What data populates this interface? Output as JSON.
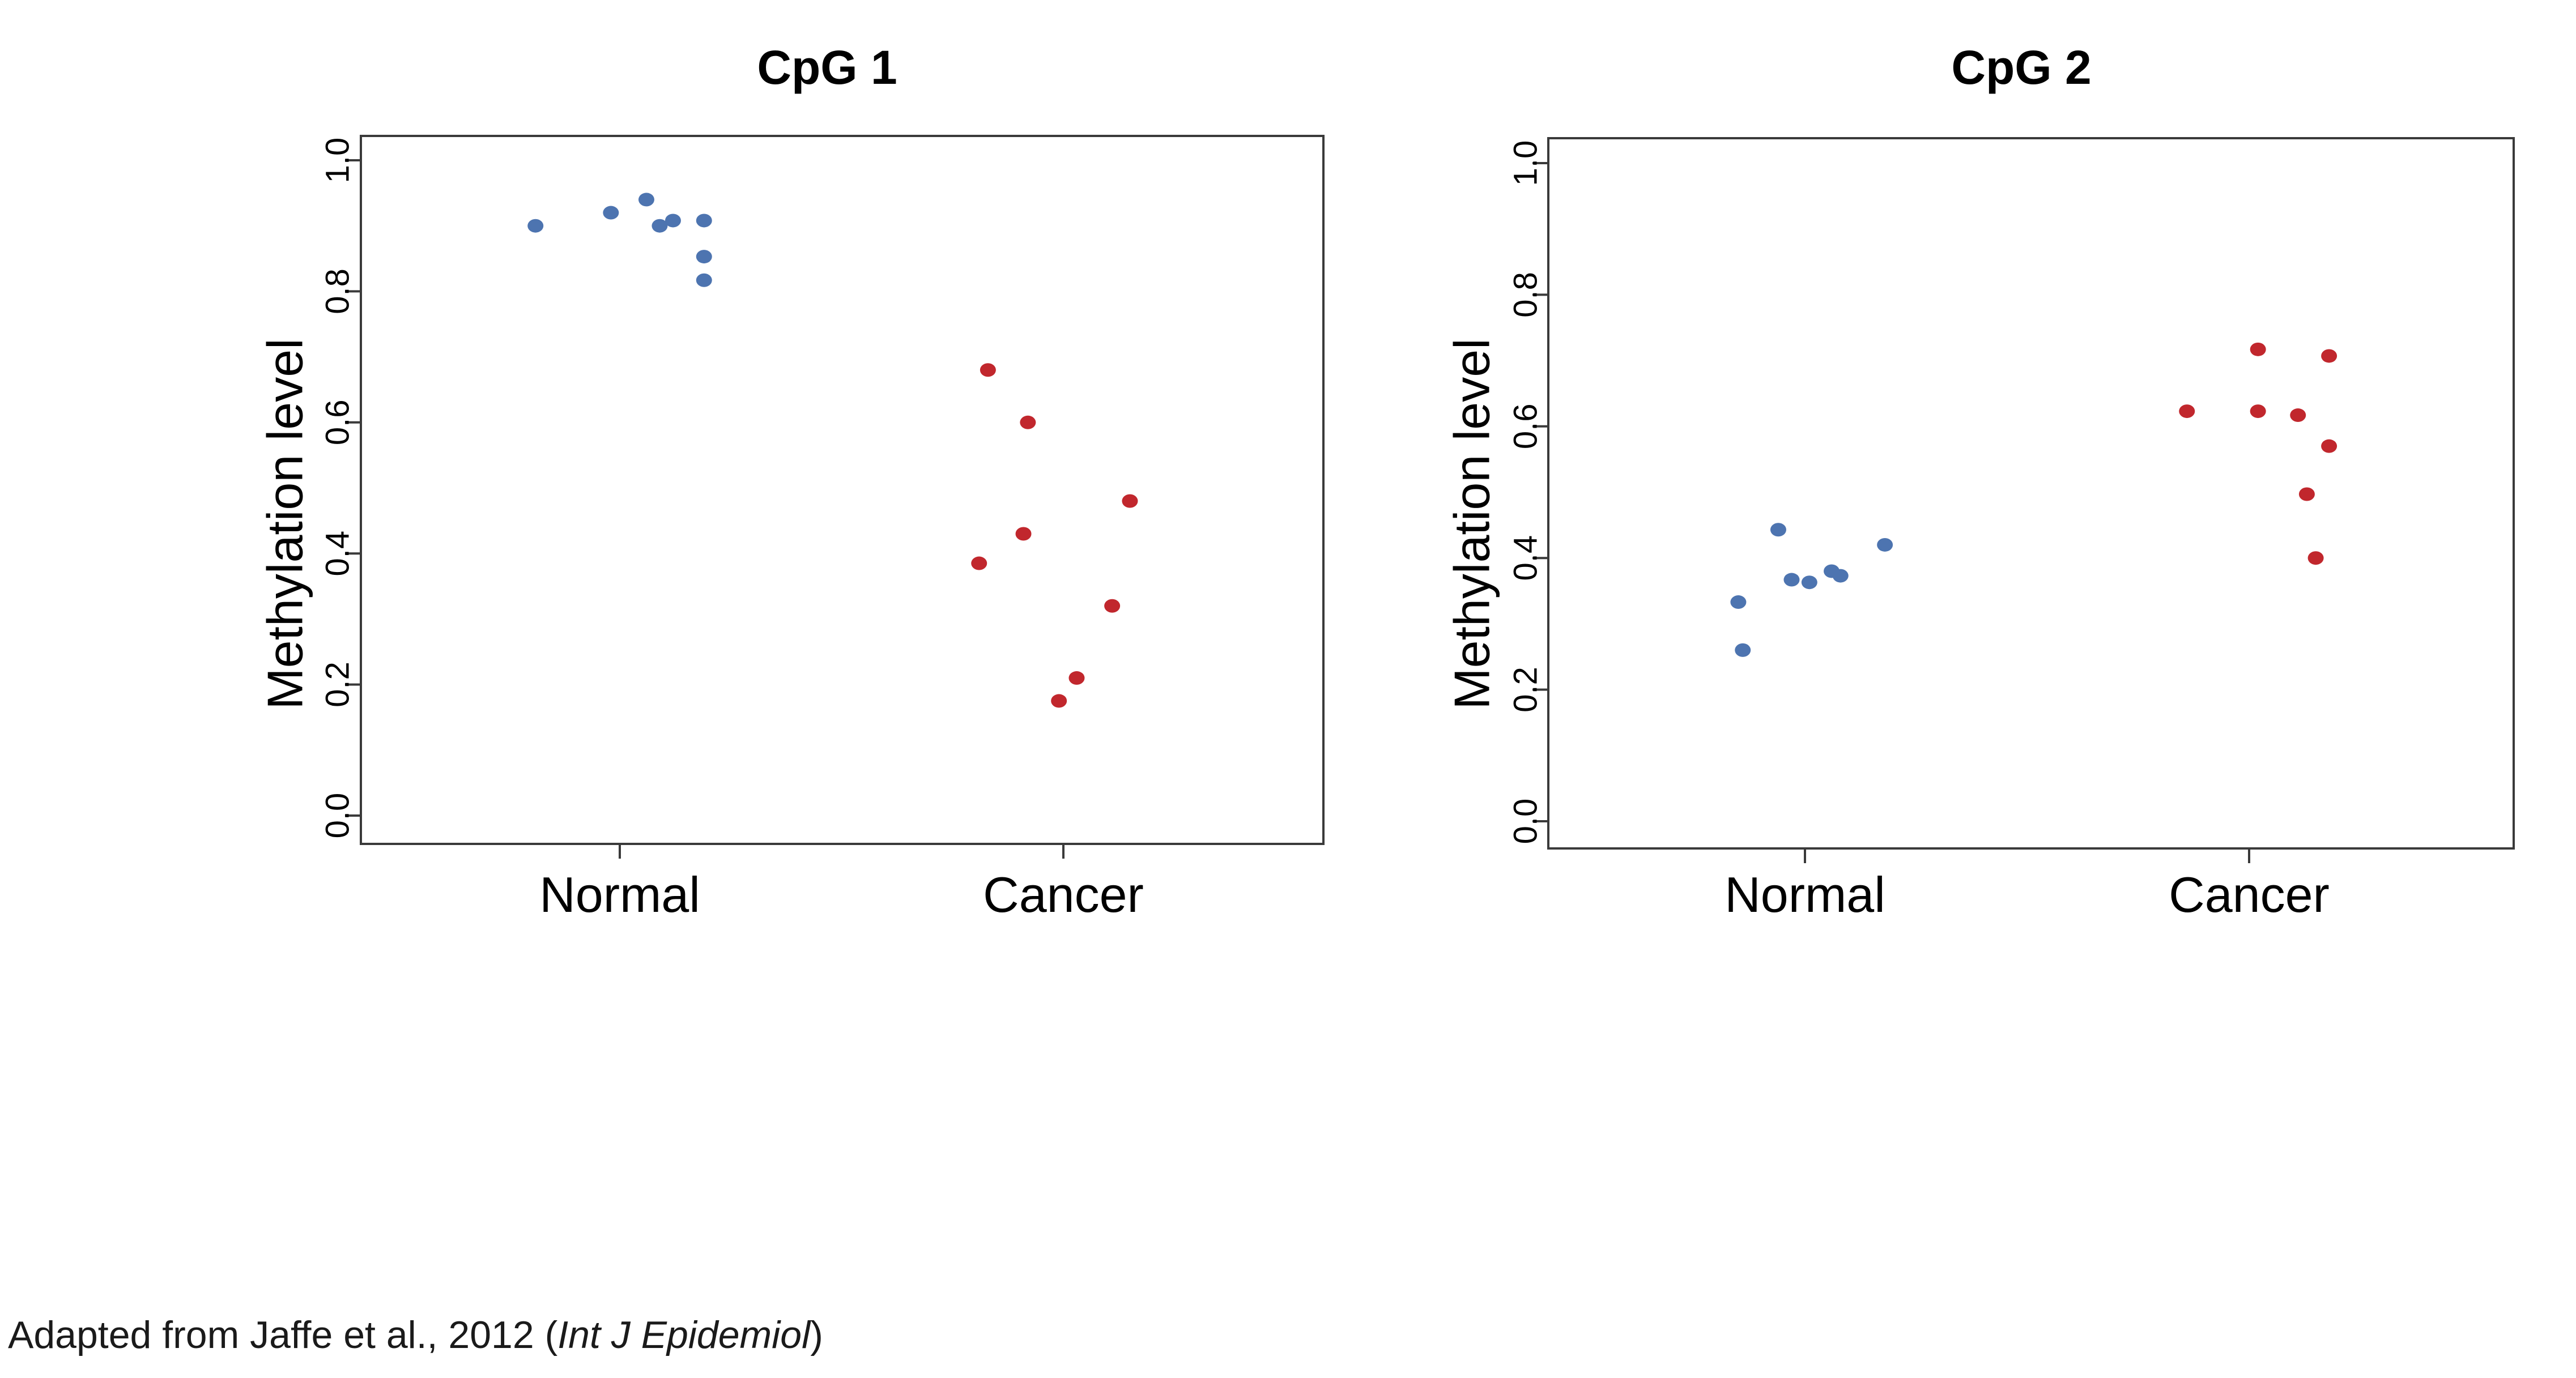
{
  "chart_data": [
    {
      "type": "scatter",
      "title": "CpG 1",
      "ylabel": "Methylation level",
      "xlabel": "",
      "categories": [
        "Normal",
        "Cancer"
      ],
      "ylim": [
        0.0,
        1.0
      ],
      "yticks": [
        "0.0",
        "0.2",
        "0.4",
        "0.6",
        "0.8",
        "1.0"
      ],
      "grid": false,
      "series": [
        {
          "category": "Normal",
          "color": "#4d74b0",
          "points": [
            {
              "x": -0.19,
              "y": 0.9
            },
            {
              "x": -0.02,
              "y": 0.92
            },
            {
              "x": 0.06,
              "y": 0.94
            },
            {
              "x": 0.09,
              "y": 0.9
            },
            {
              "x": 0.12,
              "y": 0.908
            },
            {
              "x": 0.19,
              "y": 0.908
            },
            {
              "x": 0.19,
              "y": 0.853
            },
            {
              "x": 0.19,
              "y": 0.817
            }
          ]
        },
        {
          "category": "Cancer",
          "color": "#c1272d",
          "points": [
            {
              "x": 0.83,
              "y": 0.68
            },
            {
              "x": 0.92,
              "y": 0.6
            },
            {
              "x": 0.91,
              "y": 0.43
            },
            {
              "x": 0.81,
              "y": 0.385
            },
            {
              "x": 1.15,
              "y": 0.48
            },
            {
              "x": 1.11,
              "y": 0.32
            },
            {
              "x": 1.03,
              "y": 0.21
            },
            {
              "x": 0.99,
              "y": 0.175
            }
          ]
        }
      ]
    },
    {
      "type": "scatter",
      "title": "CpG 2",
      "ylabel": "Methylation level",
      "xlabel": "",
      "categories": [
        "Normal",
        "Cancer"
      ],
      "ylim": [
        0.0,
        1.0
      ],
      "yticks": [
        "0.0",
        "0.2",
        "0.4",
        "0.6",
        "0.8",
        "1.0"
      ],
      "grid": false,
      "series": [
        {
          "category": "Normal",
          "color": "#4d74b0",
          "points": [
            {
              "x": -0.15,
              "y": 0.333
            },
            {
              "x": -0.14,
              "y": 0.26
            },
            {
              "x": -0.06,
              "y": 0.443
            },
            {
              "x": -0.03,
              "y": 0.367
            },
            {
              "x": 0.01,
              "y": 0.363
            },
            {
              "x": 0.06,
              "y": 0.38
            },
            {
              "x": 0.08,
              "y": 0.373
            },
            {
              "x": 0.18,
              "y": 0.42
            }
          ]
        },
        {
          "category": "Cancer",
          "color": "#c1272d",
          "points": [
            {
              "x": 0.86,
              "y": 0.623
            },
            {
              "x": 1.02,
              "y": 0.717
            },
            {
              "x": 1.02,
              "y": 0.623
            },
            {
              "x": 1.11,
              "y": 0.617
            },
            {
              "x": 1.13,
              "y": 0.497
            },
            {
              "x": 1.15,
              "y": 0.4
            },
            {
              "x": 1.18,
              "y": 0.707
            },
            {
              "x": 1.18,
              "y": 0.57
            }
          ]
        }
      ]
    }
  ],
  "caption": {
    "prefix": "Adapted from Jaffe et al., 2012 (",
    "italic": "Int J Epidemiol",
    "suffix": ")"
  }
}
